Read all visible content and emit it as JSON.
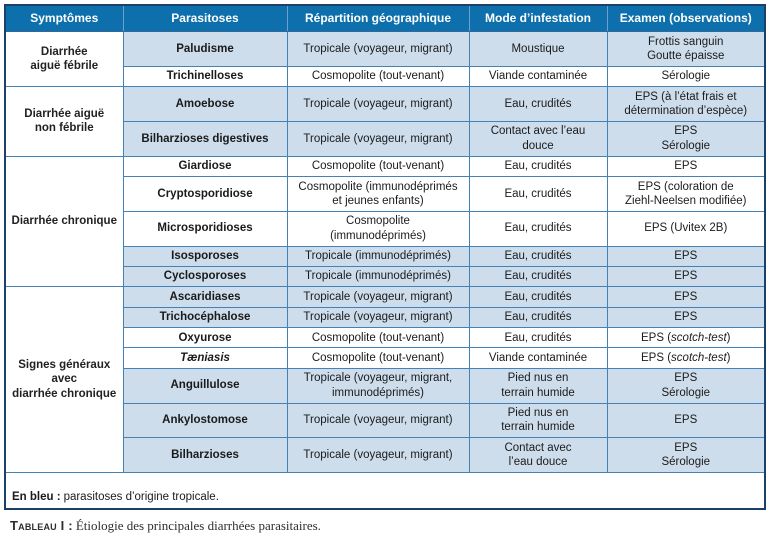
{
  "header": {
    "columns": [
      "Symptômes",
      "Parasitoses",
      "Répartition géographique",
      "Mode d’infestation",
      "Examen (observations)"
    ]
  },
  "groups": [
    {
      "symptom": "Diarrhée\naiguë fébrile",
      "rows": [
        {
          "name": "Paludisme",
          "geo": "Tropicale (voyageur, migrant)",
          "mode": "Moustique",
          "exam": "Frottis sanguin\nGoutte épaisse",
          "blue": true
        },
        {
          "name": "Trichinelloses",
          "geo": "Cosmopolite (tout-venant)",
          "mode": "Viande contaminée",
          "exam": "Sérologie",
          "blue": false
        }
      ]
    },
    {
      "symptom": "Diarrhée aiguë\nnon fébrile",
      "rows": [
        {
          "name": "Amoebose",
          "geo": "Tropicale (voyageur, migrant)",
          "mode": "Eau, crudités",
          "exam": "EPS (à l’état frais et\ndétermination d’espèce)",
          "blue": true
        },
        {
          "name": "Bilharzioses digestives",
          "geo": "Tropicale (voyageur, migrant)",
          "mode": "Contact avec l’eau\ndouce",
          "exam": "EPS\nSérologie",
          "blue": true
        }
      ]
    },
    {
      "symptom": "Diarrhée chronique",
      "rows": [
        {
          "name": "Giardiose",
          "geo": "Cosmopolite (tout-venant)",
          "mode": "Eau, crudités",
          "exam": "EPS",
          "blue": false
        },
        {
          "name": "Cryptosporidiose",
          "geo": "Cosmopolite (immunodéprimés\net jeunes enfants)",
          "mode": "Eau, crudités",
          "exam": "EPS (coloration de\nZiehl-Neelsen modifiée)",
          "blue": false
        },
        {
          "name": "Microsporidioses",
          "geo": "Cosmopolite\n(immunodéprimés)",
          "mode": "Eau, crudités",
          "exam": "EPS (Uvitex 2B)",
          "blue": false
        },
        {
          "name": "Isosporoses",
          "geo": "Tropicale (immunodéprimés)",
          "mode": "Eau, crudités",
          "exam": "EPS",
          "blue": true
        },
        {
          "name": "Cyclosporoses",
          "geo": "Tropicale (immunodéprimés)",
          "mode": "Eau, crudités",
          "exam": "EPS",
          "blue": true
        }
      ]
    },
    {
      "symptom": "Signes généraux\navec\ndiarrhée chronique",
      "rows": [
        {
          "name": "Ascaridiases",
          "geo": "Tropicale (voyageur, migrant)",
          "mode": "Eau, crudités",
          "exam": "EPS",
          "blue": true
        },
        {
          "name": "Trichocéphalose",
          "geo": "Tropicale (voyageur, migrant)",
          "mode": "Eau, crudités",
          "exam": "EPS",
          "blue": true
        },
        {
          "name": "Oxyurose",
          "geo": "Cosmopolite (tout-venant)",
          "mode": "Eau, crudités",
          "exam": "EPS (scotch-test)",
          "blue": false,
          "exam_italics": [
            "scotch-test"
          ]
        },
        {
          "name": "Tæniasis",
          "name_italic": true,
          "geo": "Cosmopolite (tout-venant)",
          "mode": "Viande contaminée",
          "exam": "EPS (scotch-test)",
          "blue": false,
          "exam_italics": [
            "scotch-test"
          ]
        },
        {
          "name": "Anguillulose",
          "geo": "Tropicale (voyageur, migrant,\nimmunodéprimés)",
          "mode": "Pied nus en\nterrain humide",
          "exam": "EPS\nSérologie",
          "blue": true
        },
        {
          "name": "Ankylostomose",
          "geo": "Tropicale (voyageur, migrant)",
          "mode": "Pied nus en\nterrain humide",
          "exam": "EPS",
          "blue": true
        },
        {
          "name": "Bilharzioses",
          "geo": "Tropicale (voyageur, migrant)",
          "mode": "Contact avec\nl’eau douce",
          "exam": "EPS\nSérologie",
          "blue": true
        }
      ]
    }
  ],
  "legend": {
    "bold": "En bleu :",
    "text": "parasitoses d’origine tropicale."
  },
  "caption": {
    "label": "Tableau I :",
    "text": "Étiologie des principales diarrhées parasitaires."
  },
  "colors": {
    "header_bg": "#0d6fac",
    "tropical_row_bg": "#cdddec",
    "cell_border": "#4482b6",
    "outer_border": "#1d4066",
    "header_separator": "#6fa0cb"
  }
}
